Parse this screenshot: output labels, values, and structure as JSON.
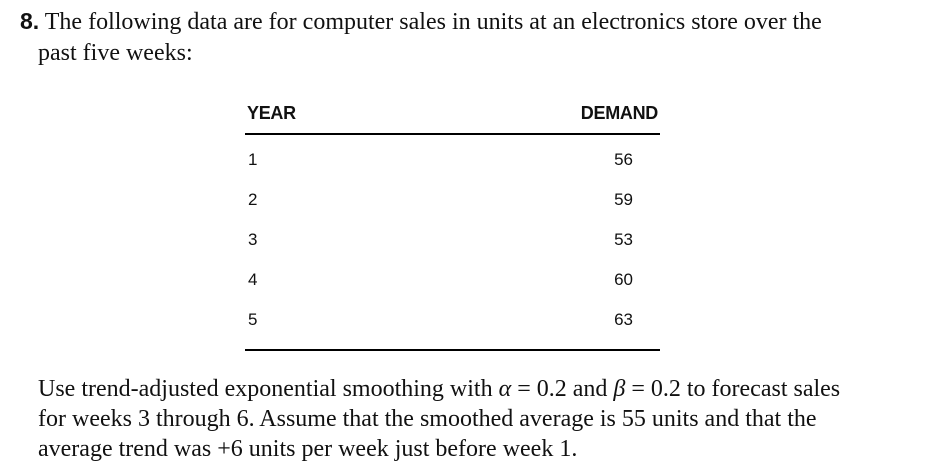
{
  "problem": {
    "number": "8.",
    "intro_line1": "The following data are for computer sales in units at an electronics store over the",
    "intro_line2": "past five weeks:"
  },
  "table": {
    "headers": {
      "year": "YEAR",
      "demand": "DEMAND"
    },
    "rows": [
      {
        "year": "1",
        "demand": "56"
      },
      {
        "year": "2",
        "demand": "59"
      },
      {
        "year": "3",
        "demand": "53"
      },
      {
        "year": "4",
        "demand": "60"
      },
      {
        "year": "5",
        "demand": "63"
      }
    ]
  },
  "instructions": {
    "line1_a": "Use trend-adjusted exponential smoothing with ",
    "alpha_symbol": "α",
    "line1_b": " = 0.2 and ",
    "beta_symbol": "β",
    "line1_c": " = 0.2 to forecast sales",
    "line2": "for weeks 3 through 6. Assume that the smoothed average is 55 units and that the",
    "line3": "average trend was +6 units per week just before week 1."
  }
}
